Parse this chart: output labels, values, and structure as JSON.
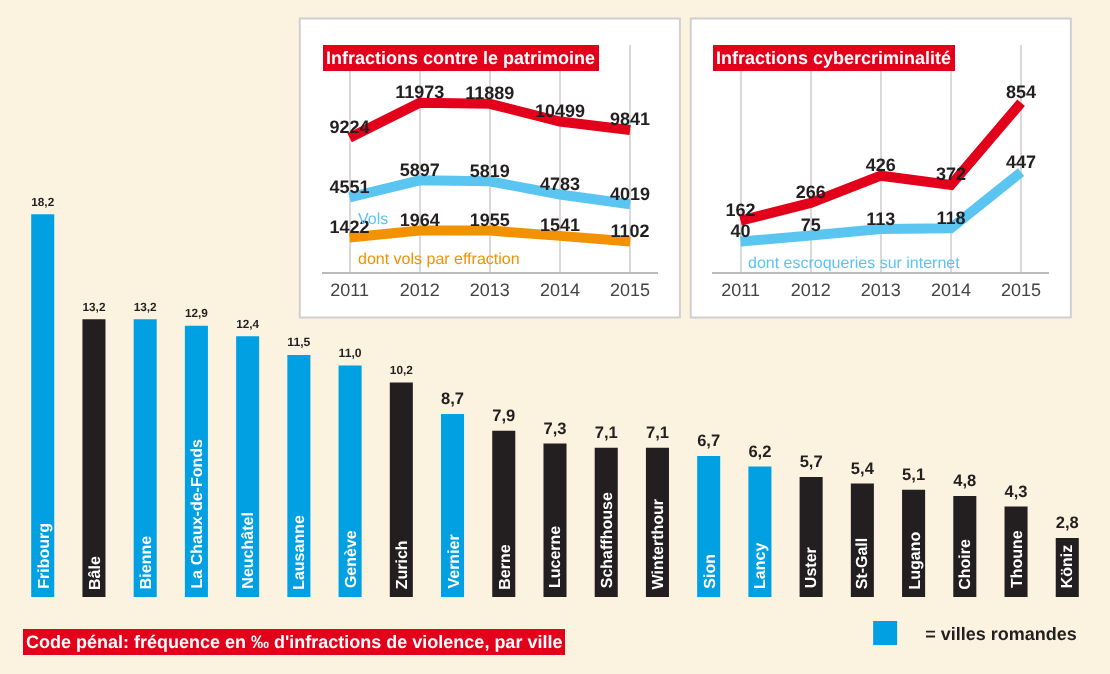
{
  "chart_data": [
    {
      "type": "bar",
      "title": "Code pénal: fréquence en ‰ d'infractions de violence, par ville",
      "categories": [
        "Fribourg",
        "Bâle",
        "Bienne",
        "La Chaux-de-Fonds",
        "Neuchâtel",
        "Lausanne",
        "Genève",
        "Zurich",
        "Vernier",
        "Berne",
        "Lucerne",
        "Schaffhouse",
        "Winterthour",
        "Sion",
        "Lancy",
        "Uster",
        "St-Gall",
        "Lugano",
        "Choire",
        "Thoune",
        "Köniz"
      ],
      "series": [
        {
          "name": "= villes romandes",
          "color": "#00a0e3",
          "values": [
            18.2,
            null,
            13.2,
            12.9,
            12.4,
            11.5,
            11.0,
            null,
            8.7,
            null,
            null,
            null,
            null,
            6.7,
            6.2,
            null,
            null,
            null,
            null,
            null,
            null
          ],
          "value_labels": [
            "18,2",
            null,
            "13,2",
            "12,9",
            "12,4",
            "11,5",
            "11,0",
            null,
            "8,7",
            null,
            null,
            null,
            null,
            "6,7",
            "6,2",
            null,
            null,
            null,
            null,
            null,
            null
          ]
        },
        {
          "color": "#231f20",
          "values": [
            null,
            13.2,
            null,
            null,
            null,
            null,
            null,
            10.2,
            null,
            7.9,
            7.3,
            7.1,
            7.1,
            null,
            null,
            5.7,
            5.4,
            5.1,
            4.8,
            4.3,
            2.8
          ],
          "value_labels": [
            null,
            "13,2",
            null,
            null,
            null,
            null,
            null,
            "10,2",
            null,
            "7,9",
            "7,3",
            "7,1",
            "7,1",
            null,
            null,
            "5,7",
            "5,4",
            "5,1",
            "4,8",
            "4,3",
            "2,8"
          ]
        }
      ],
      "legend": "bottom right",
      "grid": false
    },
    {
      "type": "line",
      "x": [
        2011,
        2012,
        2013,
        2014,
        2015
      ],
      "xlim": [
        2010.6,
        2015.4
      ],
      "xticks": [
        2011,
        2012,
        2013,
        2014,
        2015
      ],
      "tick_labels": "x",
      "grid": "x",
      "data_labels": true,
      "marker": "none",
      "legend": false,
      "series": [
        {
          "name": "Infractions contre le patrimoine",
          "color": "#e2001a",
          "values": [
            9224,
            11973,
            11889,
            10499,
            9841
          ]
        },
        {
          "name": "Vols",
          "color": "#5bc5f2",
          "values": [
            4551,
            5897,
            5819,
            4783,
            4019
          ]
        },
        {
          "name": "dont vols par effraction",
          "color": "#f39200",
          "values": [
            1422,
            1964,
            1955,
            1541,
            1102
          ]
        }
      ]
    },
    {
      "type": "line",
      "x": [
        2011,
        2012,
        2013,
        2014,
        2015
      ],
      "xlim": [
        2010.6,
        2015.4
      ],
      "xticks": [
        2011,
        2012,
        2013,
        2014,
        2015
      ],
      "tick_labels": "x",
      "grid": "x",
      "data_labels": true,
      "marker": "none",
      "legend": false,
      "series": [
        {
          "name": "Infractions cybercriminalité",
          "color": "#e2001a",
          "values": [
            162,
            266,
            426,
            372,
            854
          ]
        },
        {
          "name": "dont escroqueries sur internet",
          "color": "#5bc5f2",
          "values": [
            40,
            75,
            113,
            118,
            447
          ]
        }
      ]
    }
  ]
}
